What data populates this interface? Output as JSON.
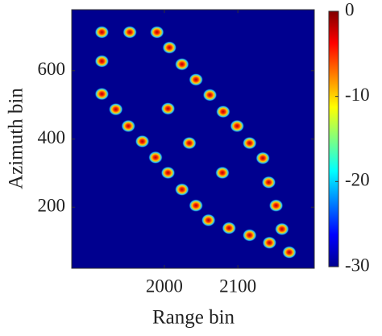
{
  "chart_data": {
    "type": "scatter",
    "xlabel": "Range bin",
    "ylabel": "Azimuth bin",
    "x": [
      1915,
      1953,
      1990,
      2007,
      1915,
      2024,
      2043,
      1915,
      2062,
      1934,
      2005,
      2080,
      1951,
      2099,
      1970,
      2034,
      2116,
      1988,
      2134,
      2005,
      2079,
      2142,
      2024,
      2152,
      2043,
      2060,
      2088,
      2160,
      2116,
      2143,
      2170
    ],
    "y": [
      713,
      713,
      713,
      668,
      628,
      619,
      574,
      532,
      529,
      487,
      489,
      480,
      438,
      438,
      393,
      388,
      388,
      346,
      344,
      301,
      301,
      273,
      252,
      205,
      205,
      162,
      139,
      136,
      118,
      96,
      68
    ],
    "xlim": [
      1874,
      2204
    ],
    "ylim": [
      21,
      779
    ],
    "xticks": [
      2000,
      2100
    ],
    "yticks": [
      200,
      400,
      600
    ],
    "background": "#00008f",
    "colormap": "jet",
    "clim": [
      -30,
      0
    ],
    "cticks": [
      0,
      -10,
      -20,
      -30
    ]
  }
}
